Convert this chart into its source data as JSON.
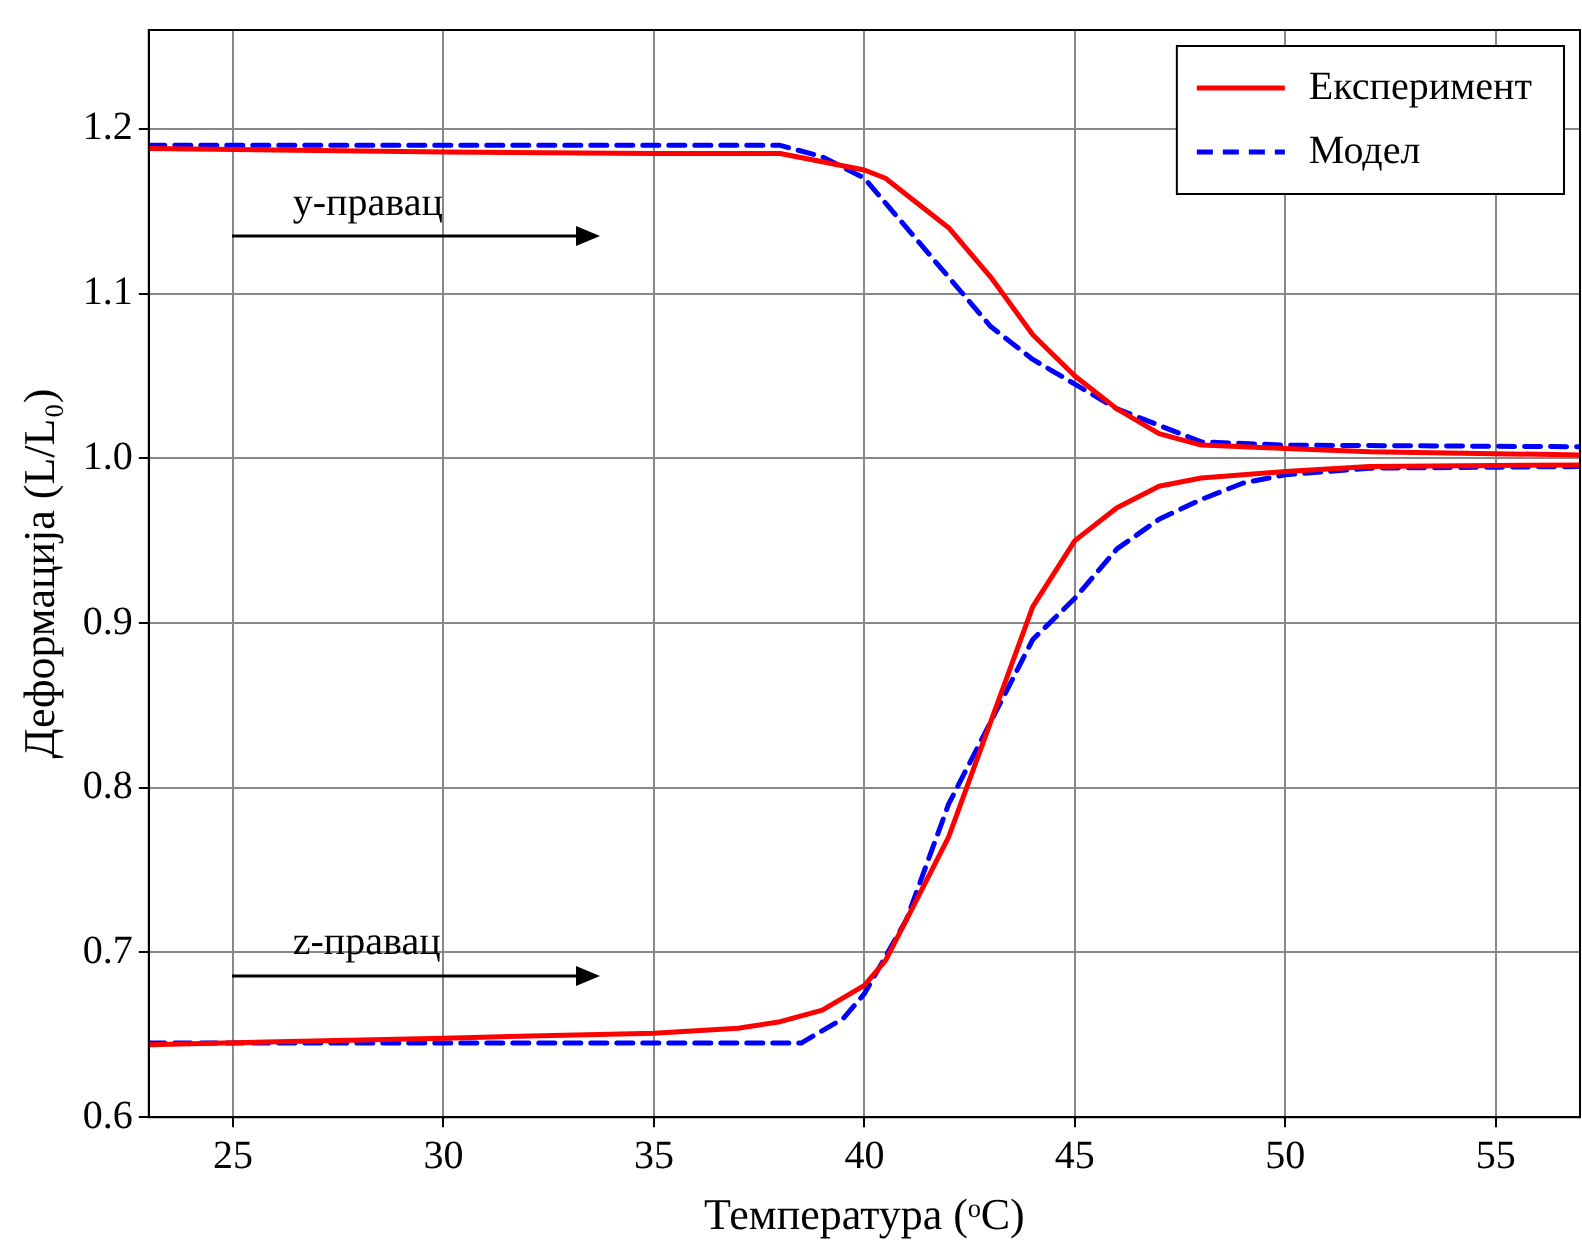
{
  "chart_data": {
    "type": "line",
    "xlabel": "Температура (ᵒC)",
    "ylabel": "Деформација (L/L₀)",
    "xlim": [
      23,
      57
    ],
    "xticks": [
      25,
      30,
      35,
      40,
      45,
      50,
      55
    ],
    "ylim": [
      0.6,
      1.26
    ],
    "yticks": [
      0.6,
      0.7,
      0.8,
      0.9,
      {
        "value": 1,
        "label": "1.0"
      },
      1.1,
      1.2
    ],
    "grid": true,
    "legend": "top right",
    "marker": "none",
    "series": [
      {
        "name": "Експеримент",
        "color": "#ff0000",
        "line_style": "solid",
        "x": [
          23,
          30,
          35,
          38,
          39,
          40,
          40.5,
          41,
          42,
          43,
          44,
          45,
          46,
          47,
          48,
          49,
          50,
          52,
          57
        ],
        "values": [
          1.188,
          1.186,
          1.185,
          1.185,
          1.18,
          1.175,
          1.17,
          1.16,
          1.14,
          1.11,
          1.075,
          1.05,
          1.03,
          1.015,
          1.008,
          1.007,
          1.006,
          1.004,
          1.002
        ]
      },
      {
        "name": "Модел",
        "color": "#0000ff",
        "line_style": "dashed",
        "x": [
          23,
          38,
          39,
          40,
          41,
          42,
          43,
          44,
          45,
          46,
          47,
          48,
          50,
          57
        ],
        "values": [
          1.19,
          1.19,
          1.183,
          1.17,
          1.14,
          1.11,
          1.08,
          1.06,
          1.045,
          1.03,
          1.02,
          1.01,
          1.008,
          1.007
        ]
      },
      {
        "color": "#ff0000",
        "line_style": "solid",
        "x": [
          23,
          30,
          35,
          37,
          38,
          39,
          40,
          40.5,
          41,
          42,
          43,
          44,
          45,
          46,
          47,
          48,
          50,
          52,
          57
        ],
        "values": [
          0.644,
          0.648,
          0.651,
          0.654,
          0.658,
          0.665,
          0.68,
          0.695,
          0.72,
          0.77,
          0.84,
          0.91,
          0.95,
          0.97,
          0.983,
          0.988,
          0.992,
          0.995,
          0.996
        ]
      },
      {
        "color": "#0000ff",
        "line_style": "dashed",
        "x": [
          23,
          38.5,
          39.5,
          40,
          41,
          42,
          43,
          44,
          45,
          46,
          47,
          48,
          49,
          50,
          52,
          57
        ],
        "values": [
          0.645,
          0.645,
          0.66,
          0.675,
          0.72,
          0.79,
          0.84,
          0.89,
          0.915,
          0.945,
          0.963,
          0.975,
          0.985,
          0.99,
          0.994,
          0.995
        ]
      }
    ],
    "annotations": [
      "y-правац",
      "z-правац"
    ]
  }
}
